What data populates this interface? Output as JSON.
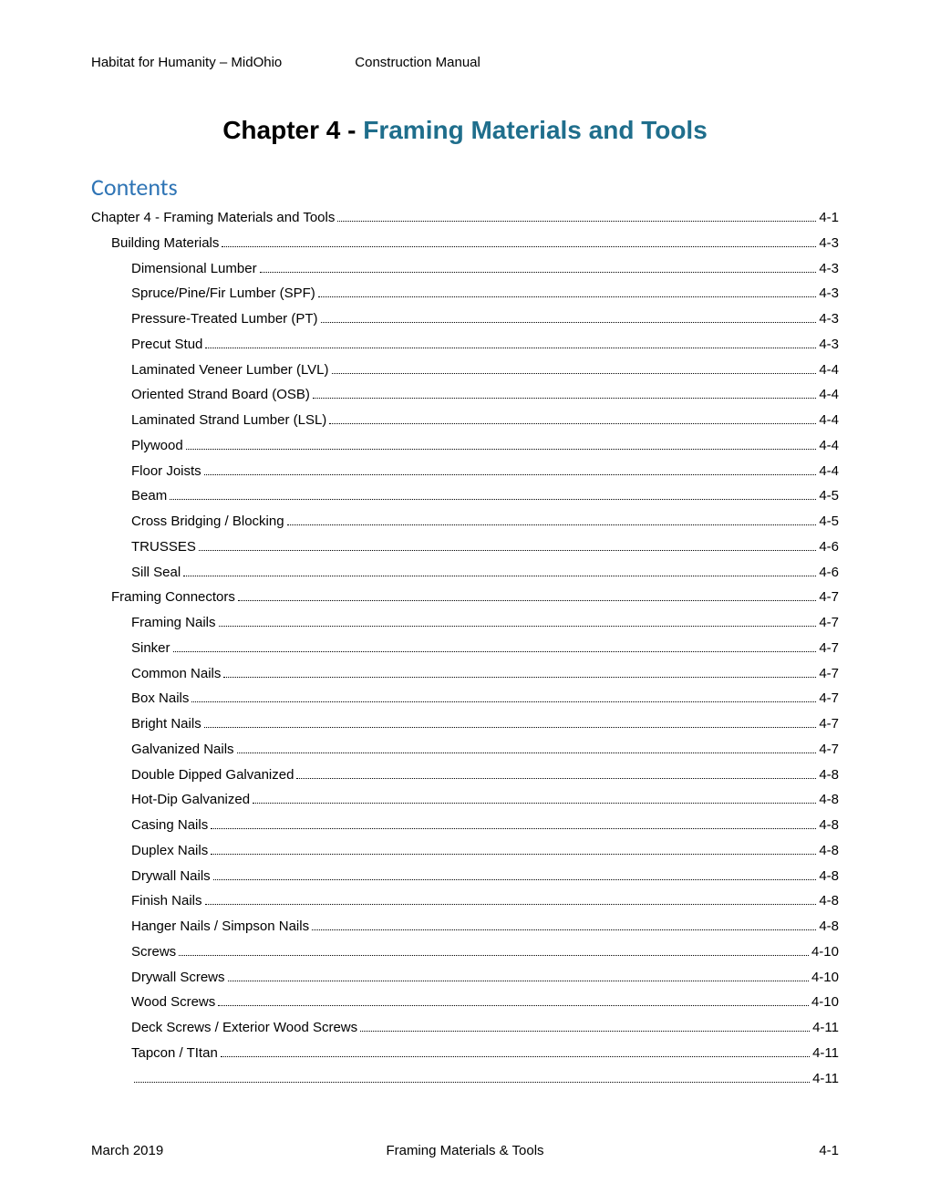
{
  "header": {
    "left": "Habitat for Humanity – MidOhio",
    "center": "Construction Manual"
  },
  "chapter": {
    "prefix": "Chapter 4  -  ",
    "title": "Framing Materials and Tools"
  },
  "contents_heading": "Contents",
  "toc": [
    {
      "label": "Chapter 4  - Framing Materials and Tools",
      "page": "4-1",
      "indent": 0
    },
    {
      "label": "Building Materials",
      "page": "4-3",
      "indent": 1
    },
    {
      "label": "Dimensional Lumber",
      "page": "4-3",
      "indent": 2
    },
    {
      "label": "Spruce/Pine/Fir Lumber (SPF)",
      "page": "4-3",
      "indent": 2
    },
    {
      "label": "Pressure-Treated Lumber (PT)",
      "page": "4-3",
      "indent": 2
    },
    {
      "label": "Precut Stud",
      "page": "4-3",
      "indent": 2
    },
    {
      "label": "Laminated Veneer Lumber (LVL)",
      "page": "4-4",
      "indent": 2
    },
    {
      "label": "Oriented Strand Board (OSB)",
      "page": "4-4",
      "indent": 2
    },
    {
      "label": "Laminated Strand Lumber (LSL)",
      "page": "4-4",
      "indent": 2
    },
    {
      "label": "Plywood",
      "page": "4-4",
      "indent": 2
    },
    {
      "label": "Floor Joists",
      "page": "4-4",
      "indent": 2
    },
    {
      "label": "Beam",
      "page": "4-5",
      "indent": 2
    },
    {
      "label": "Cross Bridging / Blocking",
      "page": "4-5",
      "indent": 2
    },
    {
      "label": "TRUSSES",
      "page": "4-6",
      "indent": 2
    },
    {
      "label": "Sill Seal",
      "page": "4-6",
      "indent": 2
    },
    {
      "label": "Framing Connectors",
      "page": "4-7",
      "indent": 1
    },
    {
      "label": "Framing Nails",
      "page": "4-7",
      "indent": 2
    },
    {
      "label": "Sinker",
      "page": "4-7",
      "indent": 2
    },
    {
      "label": "Common Nails",
      "page": "4-7",
      "indent": 2
    },
    {
      "label": "Box Nails",
      "page": "4-7",
      "indent": 2
    },
    {
      "label": "Bright Nails",
      "page": "4-7",
      "indent": 2
    },
    {
      "label": "Galvanized Nails",
      "page": "4-7",
      "indent": 2
    },
    {
      "label": "Double Dipped Galvanized",
      "page": "4-8",
      "indent": 2
    },
    {
      "label": "Hot-Dip Galvanized",
      "page": "4-8",
      "indent": 2
    },
    {
      "label": "Casing Nails",
      "page": "4-8",
      "indent": 2
    },
    {
      "label": "Duplex Nails",
      "page": "4-8",
      "indent": 2
    },
    {
      "label": "Drywall Nails",
      "page": "4-8",
      "indent": 2
    },
    {
      "label": "Finish Nails",
      "page": "4-8",
      "indent": 2
    },
    {
      "label": "Hanger Nails / Simpson Nails",
      "page": "4-8",
      "indent": 2
    },
    {
      "label": "Screws",
      "page": "4-10",
      "indent": 2
    },
    {
      "label": "Drywall Screws",
      "page": "4-10",
      "indent": 2
    },
    {
      "label": "Wood Screws",
      "page": "4-10",
      "indent": 2
    },
    {
      "label": "Deck Screws / Exterior Wood Screws",
      "page": "4-11",
      "indent": 2
    },
    {
      "label": "Tapcon / TItan",
      "page": "4-11",
      "indent": 2
    },
    {
      "label": "",
      "page": "4-11",
      "indent": 2
    }
  ],
  "footer": {
    "left": "March 2019",
    "center": "Framing Materials & Tools",
    "right": "4-1"
  },
  "colors": {
    "chapter_title": "#1f6e8c",
    "contents_heading": "#2e74b5",
    "text": "#000000",
    "background": "#ffffff"
  },
  "typography": {
    "body_fontsize": 15,
    "chapter_fontsize": 28,
    "contents_fontsize": 26
  }
}
